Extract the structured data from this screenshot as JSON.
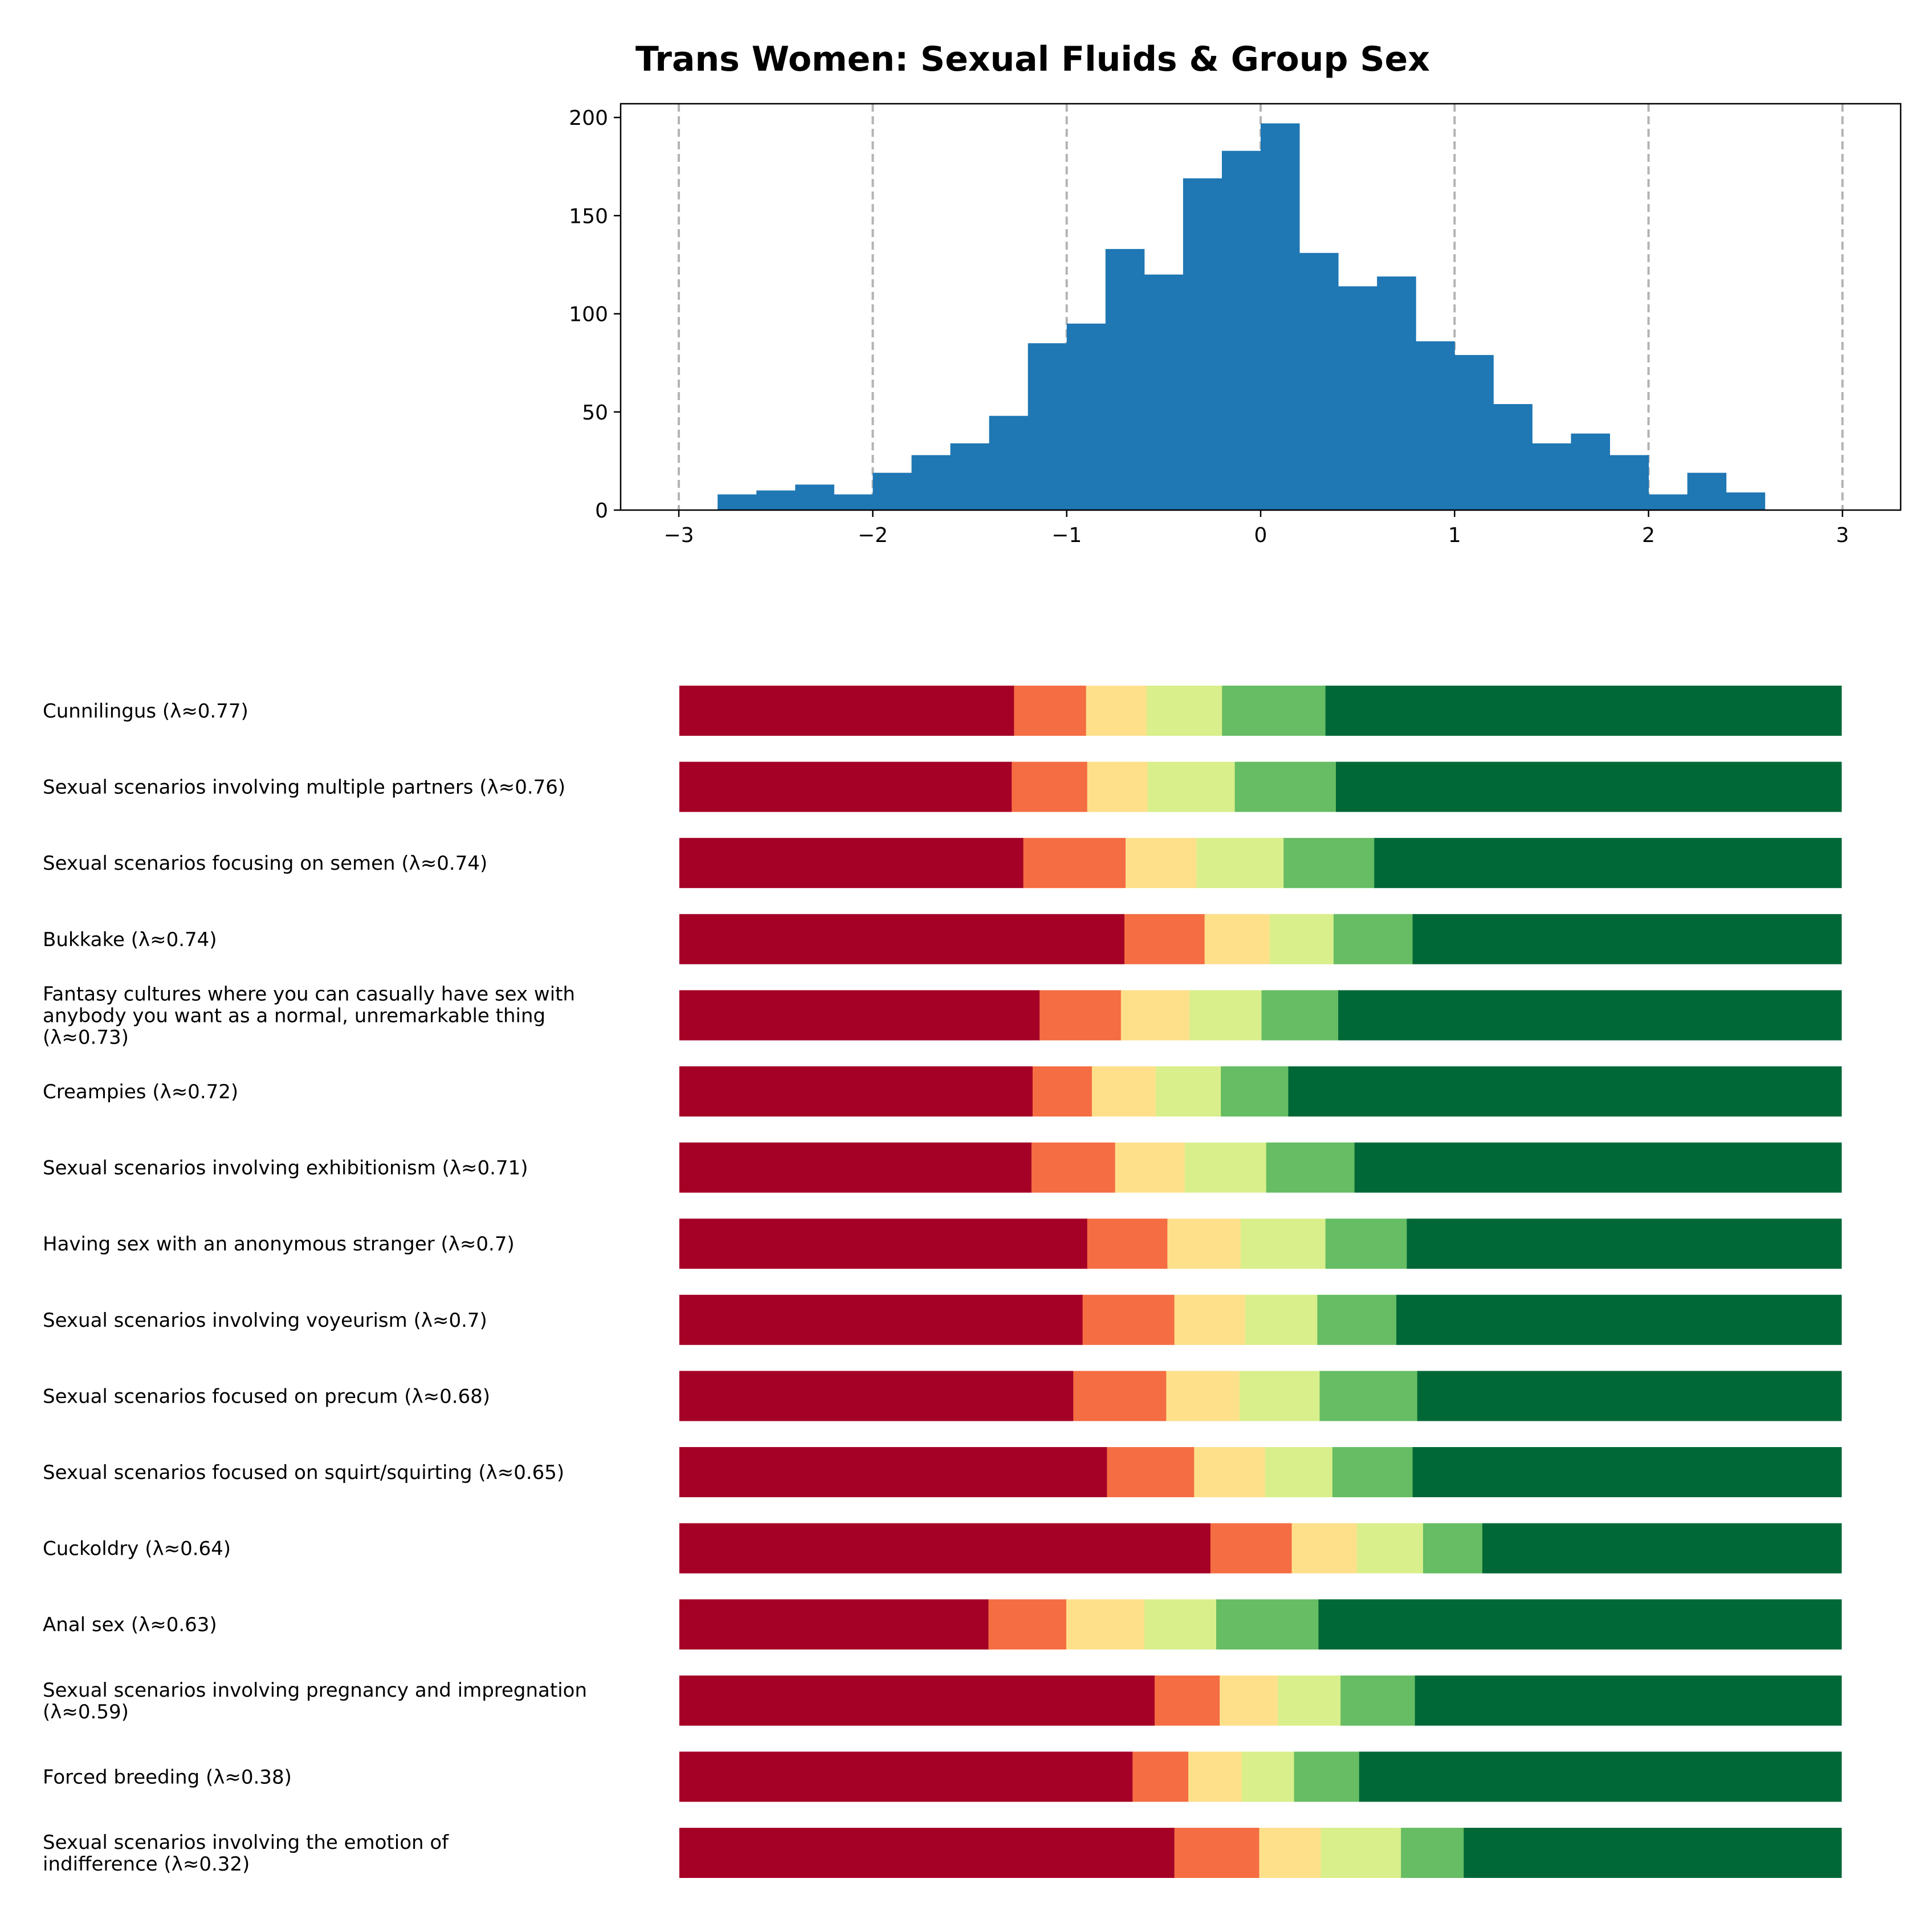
{
  "title": "Trans Women: Sexual Fluids & Group Sex",
  "colors": {
    "histogram": "#1f77b4",
    "grid": "#b3b3b3",
    "segments": [
      "#a50026",
      "#f46d43",
      "#fee08b",
      "#d9ef8b",
      "#66bd63",
      "#006837"
    ]
  },
  "chart_data": [
    {
      "type": "bar",
      "subtype": "histogram",
      "xlim": [
        -3.3,
        3.3
      ],
      "ylim": [
        0,
        207
      ],
      "xticks": [
        -3,
        -2,
        -1,
        0,
        1,
        2,
        3
      ],
      "xtick_labels": [
        "−3",
        "−2",
        "−1",
        "0",
        "1",
        "2",
        "3"
      ],
      "yticks": [
        0,
        50,
        100,
        150,
        200
      ],
      "ytick_labels": [
        "0",
        "50",
        "100",
        "150",
        "200"
      ],
      "grid": "vertical dashed at x ticks",
      "bin_width": 0.2,
      "bin_starts": [
        -2.8,
        -2.6,
        -2.4,
        -2.2,
        -2.0,
        -1.8,
        -1.6,
        -1.4,
        -1.2,
        -1.0,
        -0.8,
        -0.6,
        -0.4,
        -0.2,
        0.0,
        0.2,
        0.4,
        0.6,
        0.8,
        1.0,
        1.2,
        1.4,
        1.6,
        1.8,
        2.0,
        2.2,
        2.4
      ],
      "counts": [
        8,
        10,
        13,
        8,
        19,
        28,
        34,
        48,
        85,
        95,
        133,
        120,
        169,
        183,
        197,
        131,
        114,
        119,
        86,
        79,
        54,
        34,
        39,
        28,
        8,
        19,
        9
      ]
    },
    {
      "type": "bar",
      "subtype": "stacked-horizontal-100",
      "xlim": [
        0,
        100
      ],
      "rows": [
        {
          "label": "Cunnilingus (λ≈0.77)",
          "values": [
            28.8,
            6.2,
            5.2,
            6.5,
            8.9,
            44.4
          ]
        },
        {
          "label": "Sexual scenarios involving multiple partners (λ≈0.76)",
          "values": [
            28.6,
            6.5,
            5.2,
            7.5,
            8.7,
            43.5
          ]
        },
        {
          "label": "Sexual scenarios focusing on semen (λ≈0.74)",
          "values": [
            29.6,
            8.8,
            6.1,
            7.5,
            7.8,
            40.2
          ]
        },
        {
          "label": "Bukkake (λ≈0.74)",
          "values": [
            38.3,
            6.9,
            5.6,
            5.5,
            6.8,
            36.9
          ]
        },
        {
          "label": "Fantasy cultures where you can casually have sex with anybody you want as a normal, unremarkable thing (λ≈0.73)",
          "values": [
            31.0,
            7.0,
            5.9,
            6.2,
            6.6,
            43.3
          ]
        },
        {
          "label": "Creampies (λ≈0.72)",
          "values": [
            30.4,
            5.1,
            5.5,
            5.6,
            5.8,
            47.6
          ]
        },
        {
          "label": "Sexual scenarios involving exhibitionism (λ≈0.71)",
          "values": [
            30.3,
            7.2,
            6.0,
            7.0,
            7.6,
            41.9
          ]
        },
        {
          "label": "Having sex with an anonymous stranger (λ≈0.7)",
          "values": [
            35.1,
            6.9,
            6.3,
            7.3,
            7.0,
            37.4
          ]
        },
        {
          "label": "Sexual scenarios involving voyeurism (λ≈0.7)",
          "values": [
            34.7,
            7.9,
            6.1,
            6.2,
            6.8,
            38.3
          ]
        },
        {
          "label": "Sexual scenarios focused on precum (λ≈0.68)",
          "values": [
            33.9,
            8.0,
            6.3,
            6.9,
            8.4,
            36.5
          ]
        },
        {
          "label": "Sexual scenarios focused on squirt/squirting (λ≈0.65)",
          "values": [
            36.8,
            7.5,
            6.1,
            5.8,
            6.9,
            36.9
          ]
        },
        {
          "label": "Cuckoldry (λ≈0.64)",
          "values": [
            45.7,
            7.0,
            5.6,
            5.7,
            5.1,
            30.9
          ]
        },
        {
          "label": "Anal sex (λ≈0.63)",
          "values": [
            26.6,
            6.7,
            6.7,
            6.2,
            8.8,
            45.0
          ]
        },
        {
          "label": "Sexual scenarios involving pregnancy and impregnation (λ≈0.59)",
          "values": [
            40.9,
            5.6,
            5.0,
            5.4,
            6.4,
            36.7
          ]
        },
        {
          "label": "Forced breeding (λ≈0.38)",
          "values": [
            39.0,
            4.8,
            4.6,
            4.5,
            5.6,
            41.5
          ]
        },
        {
          "label": "Sexual scenarios involving the emotion of indifference (λ≈0.32)",
          "values": [
            42.6,
            7.3,
            5.3,
            6.9,
            5.4,
            32.5
          ]
        }
      ]
    }
  ]
}
